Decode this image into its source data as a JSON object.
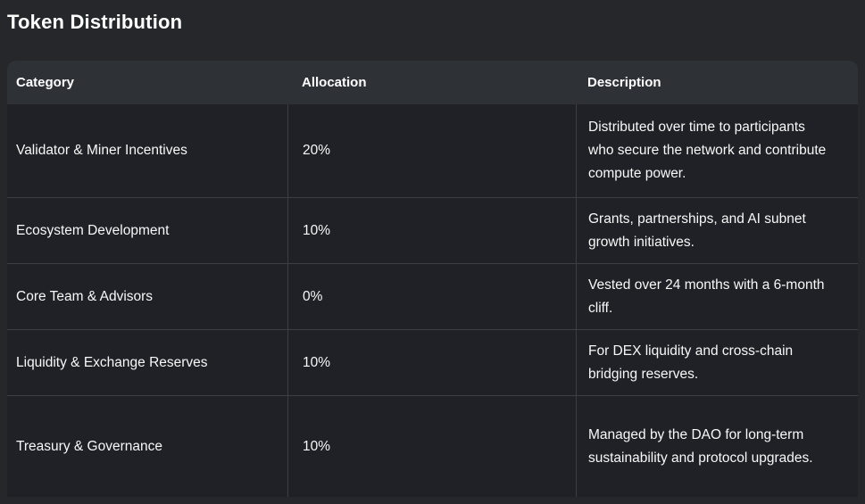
{
  "page": {
    "title": "Token Distribution"
  },
  "table": {
    "columns": [
      {
        "label": "Category"
      },
      {
        "label": "Allocation"
      },
      {
        "label": "Description"
      }
    ],
    "rows": [
      {
        "category": "Validator & Miner Incentives",
        "allocation": "20%",
        "description": "Distributed over time to participants who secure the network and contribute compute power."
      },
      {
        "category": "Ecosystem Development",
        "allocation": "10%",
        "description": "Grants, partnerships, and AI subnet growth initiatives."
      },
      {
        "category": "Core Team & Advisors",
        "allocation": "0%",
        "description": "Vested over 24 months with a 6-month cliff."
      },
      {
        "category": "Liquidity & Exchange Reserves",
        "allocation": "10%",
        "description": "For DEX liquidity and cross-chain bridging reserves."
      },
      {
        "category": "Treasury & Governance",
        "allocation": "10%",
        "description": "Managed by the DAO for long-term sustainability and protocol upgrades."
      }
    ]
  },
  "colors": {
    "page_bg": "#25272b",
    "row_bg": "#1f2126",
    "header_bg": "#2e3136",
    "divider": "#3c3f45",
    "text": "#f7f8f8",
    "title_text": "#ffffff"
  }
}
